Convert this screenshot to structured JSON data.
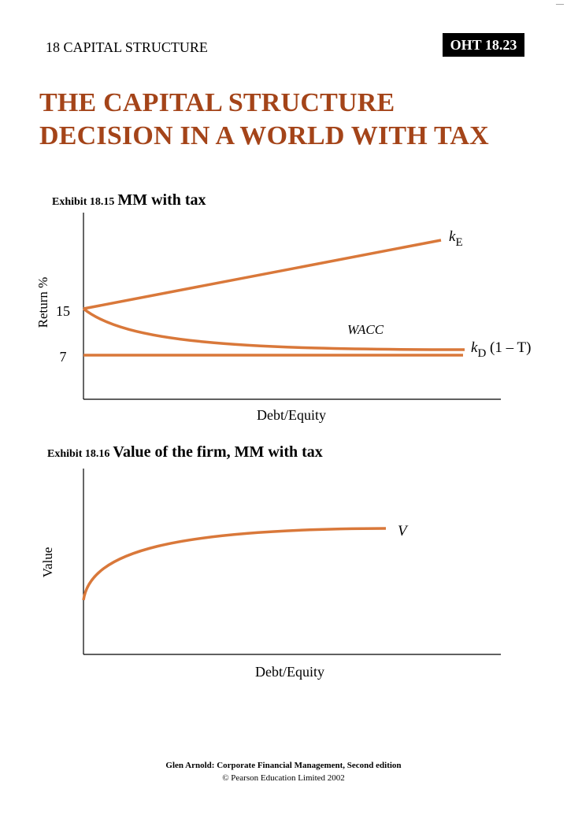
{
  "header": {
    "chapter": "18  CAPITAL STRUCTURE",
    "oht": "OHT 18.23",
    "corner_mark": "—"
  },
  "title": {
    "line1": "THE CAPITAL STRUCTURE",
    "line2": "DECISION IN A WORLD WITH TAX"
  },
  "colors": {
    "title": "#a44419",
    "curve": "#d9783a",
    "axis": "#000000"
  },
  "exhibits": [
    {
      "number": "Exhibit 18.15",
      "caption": "MM with tax"
    },
    {
      "number": "Exhibit 18.16",
      "caption": "Value of the firm, MM with tax"
    }
  ],
  "chart_data": [
    {
      "type": "line",
      "xlabel": "Debt/Equity",
      "ylabel": "Return %",
      "yticks": [
        "15",
        "7"
      ],
      "series": [
        {
          "name": "kE",
          "label_main": "k",
          "label_sub": "E",
          "shape": "rising straight line from 15"
        },
        {
          "name": "WACC",
          "label_main": "WACC",
          "shape": "declining curve from 15 towards kD(1 − T)"
        },
        {
          "name": "kD (1 − T)",
          "label_main": "k",
          "label_sub": "D",
          "label_suffix": " (1 – T)",
          "shape": "flat at 7"
        }
      ]
    },
    {
      "type": "line",
      "xlabel": "Debt/Equity",
      "ylabel": "Value",
      "series": [
        {
          "name": "V",
          "label_main": "V",
          "shape": "concave rising curve"
        }
      ]
    }
  ],
  "footer": {
    "line1": "Glen Arnold: Corporate Financial Management, Second edition",
    "line2": "© Pearson Education Limited 2002"
  }
}
